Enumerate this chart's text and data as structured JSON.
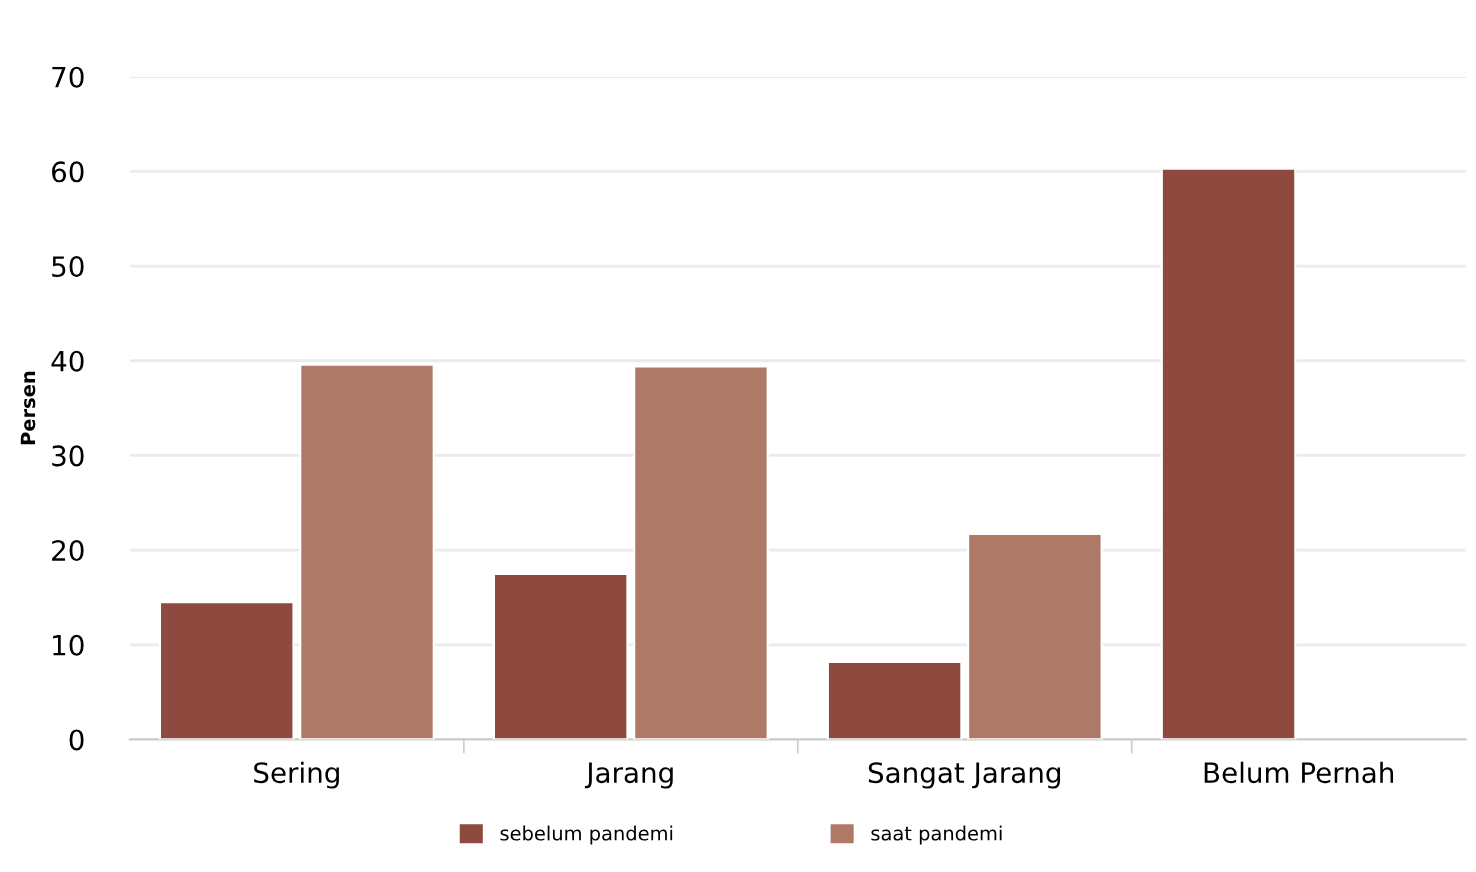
{
  "chart_data": {
    "type": "bar",
    "ylabel": "Persen",
    "categories": [
      "Sering",
      "Jarang",
      "Sangat Jarang",
      "Belum Pernah"
    ],
    "series": [
      {
        "name": "sebelum pandemi",
        "color": "#8e4a3e",
        "values": [
          14.5,
          17.5,
          8.2,
          60.3
        ]
      },
      {
        "name": "saat pandemi",
        "color": "#ae7a67",
        "values": [
          39.6,
          39.4,
          21.7,
          null
        ]
      }
    ],
    "ylim": [
      0,
      70
    ],
    "yticks": [
      0,
      10,
      20,
      30,
      40,
      50,
      60,
      70
    ],
    "grid": "y",
    "legend": "bottom"
  }
}
